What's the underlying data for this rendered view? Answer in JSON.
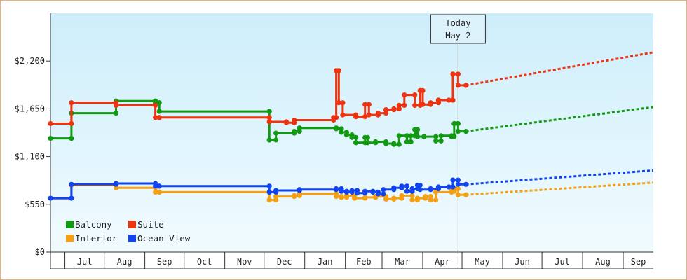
{
  "chart_data": {
    "type": "line",
    "title": "",
    "xlabel": "",
    "ylabel": "",
    "ylim": [
      0,
      2750
    ],
    "y_ticks": [
      {
        "value": 0,
        "label": "$0"
      },
      {
        "value": 550,
        "label": "$550"
      },
      {
        "value": 1100,
        "label": "$1,100"
      },
      {
        "value": 1650,
        "label": "$1,650"
      },
      {
        "value": 2200,
        "label": "$2,200"
      }
    ],
    "x_range_days": [
      0,
      460
    ],
    "x_axis_start_month": "Jun",
    "x_ticks": [
      {
        "label": "Jul",
        "start": 11,
        "end": 41
      },
      {
        "label": "Aug",
        "start": 41,
        "end": 72
      },
      {
        "label": "Sep",
        "start": 72,
        "end": 102
      },
      {
        "label": "Oct",
        "start": 102,
        "end": 133
      },
      {
        "label": "Nov",
        "start": 133,
        "end": 163
      },
      {
        "label": "Dec",
        "start": 163,
        "end": 194
      },
      {
        "label": "Jan",
        "start": 194,
        "end": 225
      },
      {
        "label": "Feb",
        "start": 225,
        "end": 253
      },
      {
        "label": "Mar",
        "start": 253,
        "end": 284
      },
      {
        "label": "Apr",
        "start": 284,
        "end": 314
      },
      {
        "label": "May",
        "start": 314,
        "end": 345
      },
      {
        "label": "Jun",
        "start": 345,
        "end": 375
      },
      {
        "label": "Jul",
        "start": 375,
        "end": 406
      },
      {
        "label": "Aug",
        "start": 406,
        "end": 437
      },
      {
        "label": "Sep",
        "start": 437,
        "end": 460
      }
    ],
    "today": {
      "day": 311,
      "label_line1": "Today",
      "label_line2": "May 2"
    },
    "legend_position": "bottom-left",
    "series": [
      {
        "name": "Balcony",
        "color": "#119911",
        "values": [
          [
            0,
            1310
          ],
          [
            16,
            1310
          ],
          [
            16,
            1600
          ],
          [
            50,
            1600
          ],
          [
            50,
            1740
          ],
          [
            80,
            1740
          ],
          [
            80,
            1720
          ],
          [
            83,
            1720
          ],
          [
            83,
            1620
          ],
          [
            167,
            1620
          ],
          [
            167,
            1290
          ],
          [
            172,
            1290
          ],
          [
            172,
            1370
          ],
          [
            186,
            1370
          ],
          [
            186,
            1390
          ],
          [
            190,
            1390
          ],
          [
            190,
            1430
          ],
          [
            218,
            1430
          ],
          [
            218,
            1420
          ],
          [
            222,
            1420
          ],
          [
            222,
            1380
          ],
          [
            226,
            1380
          ],
          [
            226,
            1350
          ],
          [
            230,
            1350
          ],
          [
            230,
            1320
          ],
          [
            233,
            1320
          ],
          [
            233,
            1260
          ],
          [
            240,
            1260
          ],
          [
            240,
            1320
          ],
          [
            242,
            1320
          ],
          [
            242,
            1260
          ],
          [
            248,
            1260
          ],
          [
            248,
            1270
          ],
          [
            256,
            1270
          ],
          [
            256,
            1250
          ],
          [
            262,
            1250
          ],
          [
            262,
            1240
          ],
          [
            266,
            1240
          ],
          [
            266,
            1340
          ],
          [
            272,
            1340
          ],
          [
            272,
            1270
          ],
          [
            275,
            1270
          ],
          [
            275,
            1340
          ],
          [
            278,
            1340
          ],
          [
            278,
            1410
          ],
          [
            280,
            1410
          ],
          [
            280,
            1330
          ],
          [
            285,
            1330
          ],
          [
            285,
            1330
          ],
          [
            294,
            1330
          ],
          [
            294,
            1280
          ],
          [
            298,
            1280
          ],
          [
            298,
            1340
          ],
          [
            306,
            1340
          ],
          [
            306,
            1330
          ],
          [
            308,
            1330
          ],
          [
            308,
            1480
          ],
          [
            311,
            1480
          ],
          [
            311,
            1390
          ],
          [
            317,
            1390
          ]
        ],
        "projection": [
          [
            317,
            1390
          ],
          [
            460,
            1670
          ]
        ]
      },
      {
        "name": "Suite",
        "color": "#ee3311",
        "values": [
          [
            0,
            1480
          ],
          [
            16,
            1480
          ],
          [
            16,
            1720
          ],
          [
            50,
            1720
          ],
          [
            50,
            1690
          ],
          [
            80,
            1690
          ],
          [
            80,
            1550
          ],
          [
            83,
            1550
          ],
          [
            83,
            1550
          ],
          [
            167,
            1550
          ],
          [
            167,
            1500
          ],
          [
            180,
            1500
          ],
          [
            180,
            1490
          ],
          [
            186,
            1490
          ],
          [
            186,
            1520
          ],
          [
            216,
            1520
          ],
          [
            216,
            1550
          ],
          [
            218,
            1550
          ],
          [
            218,
            2090
          ],
          [
            220,
            2090
          ],
          [
            220,
            1720
          ],
          [
            223,
            1720
          ],
          [
            223,
            1580
          ],
          [
            233,
            1580
          ],
          [
            233,
            1560
          ],
          [
            240,
            1560
          ],
          [
            240,
            1700
          ],
          [
            243,
            1700
          ],
          [
            243,
            1580
          ],
          [
            250,
            1580
          ],
          [
            250,
            1600
          ],
          [
            256,
            1600
          ],
          [
            256,
            1640
          ],
          [
            262,
            1640
          ],
          [
            262,
            1650
          ],
          [
            266,
            1650
          ],
          [
            266,
            1690
          ],
          [
            270,
            1690
          ],
          [
            270,
            1810
          ],
          [
            278,
            1810
          ],
          [
            278,
            1690
          ],
          [
            282,
            1690
          ],
          [
            282,
            1860
          ],
          [
            284,
            1860
          ],
          [
            284,
            1700
          ],
          [
            290,
            1700
          ],
          [
            290,
            1720
          ],
          [
            296,
            1720
          ],
          [
            296,
            1750
          ],
          [
            304,
            1750
          ],
          [
            304,
            1750
          ],
          [
            307,
            1750
          ],
          [
            307,
            2050
          ],
          [
            311,
            2050
          ],
          [
            311,
            1920
          ],
          [
            317,
            1920
          ]
        ],
        "projection": [
          [
            317,
            1920
          ],
          [
            460,
            2300
          ]
        ]
      },
      {
        "name": "Interior",
        "color": "#f5a012",
        "values": [
          [
            0,
            620
          ],
          [
            16,
            620
          ],
          [
            16,
            770
          ],
          [
            50,
            770
          ],
          [
            50,
            740
          ],
          [
            80,
            740
          ],
          [
            80,
            690
          ],
          [
            83,
            690
          ],
          [
            83,
            690
          ],
          [
            167,
            690
          ],
          [
            167,
            600
          ],
          [
            172,
            600
          ],
          [
            172,
            640
          ],
          [
            186,
            640
          ],
          [
            186,
            650
          ],
          [
            190,
            650
          ],
          [
            190,
            670
          ],
          [
            218,
            670
          ],
          [
            218,
            640
          ],
          [
            222,
            640
          ],
          [
            222,
            630
          ],
          [
            226,
            630
          ],
          [
            226,
            650
          ],
          [
            232,
            650
          ],
          [
            232,
            620
          ],
          [
            240,
            620
          ],
          [
            240,
            630
          ],
          [
            248,
            630
          ],
          [
            248,
            640
          ],
          [
            256,
            640
          ],
          [
            256,
            610
          ],
          [
            262,
            610
          ],
          [
            262,
            620
          ],
          [
            268,
            620
          ],
          [
            268,
            650
          ],
          [
            276,
            650
          ],
          [
            276,
            600
          ],
          [
            280,
            600
          ],
          [
            280,
            620
          ],
          [
            286,
            620
          ],
          [
            286,
            640
          ],
          [
            290,
            640
          ],
          [
            290,
            600
          ],
          [
            294,
            600
          ],
          [
            294,
            690
          ],
          [
            306,
            690
          ],
          [
            306,
            700
          ],
          [
            308,
            700
          ],
          [
            308,
            730
          ],
          [
            311,
            730
          ],
          [
            311,
            660
          ],
          [
            317,
            660
          ]
        ],
        "projection": [
          [
            317,
            660
          ],
          [
            460,
            800
          ]
        ]
      },
      {
        "name": "Ocean View",
        "color": "#1144ee",
        "values": [
          [
            0,
            620
          ],
          [
            16,
            620
          ],
          [
            16,
            780
          ],
          [
            50,
            780
          ],
          [
            50,
            790
          ],
          [
            80,
            790
          ],
          [
            80,
            760
          ],
          [
            83,
            760
          ],
          [
            83,
            760
          ],
          [
            167,
            760
          ],
          [
            167,
            690
          ],
          [
            172,
            690
          ],
          [
            172,
            710
          ],
          [
            190,
            710
          ],
          [
            190,
            720
          ],
          [
            218,
            720
          ],
          [
            218,
            730
          ],
          [
            222,
            730
          ],
          [
            222,
            700
          ],
          [
            226,
            700
          ],
          [
            226,
            690
          ],
          [
            230,
            690
          ],
          [
            230,
            710
          ],
          [
            234,
            710
          ],
          [
            234,
            680
          ],
          [
            240,
            680
          ],
          [
            240,
            700
          ],
          [
            246,
            700
          ],
          [
            246,
            690
          ],
          [
            250,
            690
          ],
          [
            250,
            670
          ],
          [
            254,
            670
          ],
          [
            254,
            720
          ],
          [
            262,
            720
          ],
          [
            262,
            740
          ],
          [
            268,
            740
          ],
          [
            268,
            760
          ],
          [
            272,
            760
          ],
          [
            272,
            700
          ],
          [
            276,
            700
          ],
          [
            276,
            730
          ],
          [
            280,
            730
          ],
          [
            280,
            770
          ],
          [
            282,
            770
          ],
          [
            282,
            720
          ],
          [
            290,
            720
          ],
          [
            290,
            730
          ],
          [
            296,
            730
          ],
          [
            296,
            750
          ],
          [
            304,
            750
          ],
          [
            304,
            750
          ],
          [
            307,
            750
          ],
          [
            307,
            830
          ],
          [
            311,
            830
          ],
          [
            311,
            780
          ],
          [
            317,
            780
          ]
        ],
        "projection": [
          [
            317,
            780
          ],
          [
            460,
            940
          ]
        ]
      }
    ]
  }
}
